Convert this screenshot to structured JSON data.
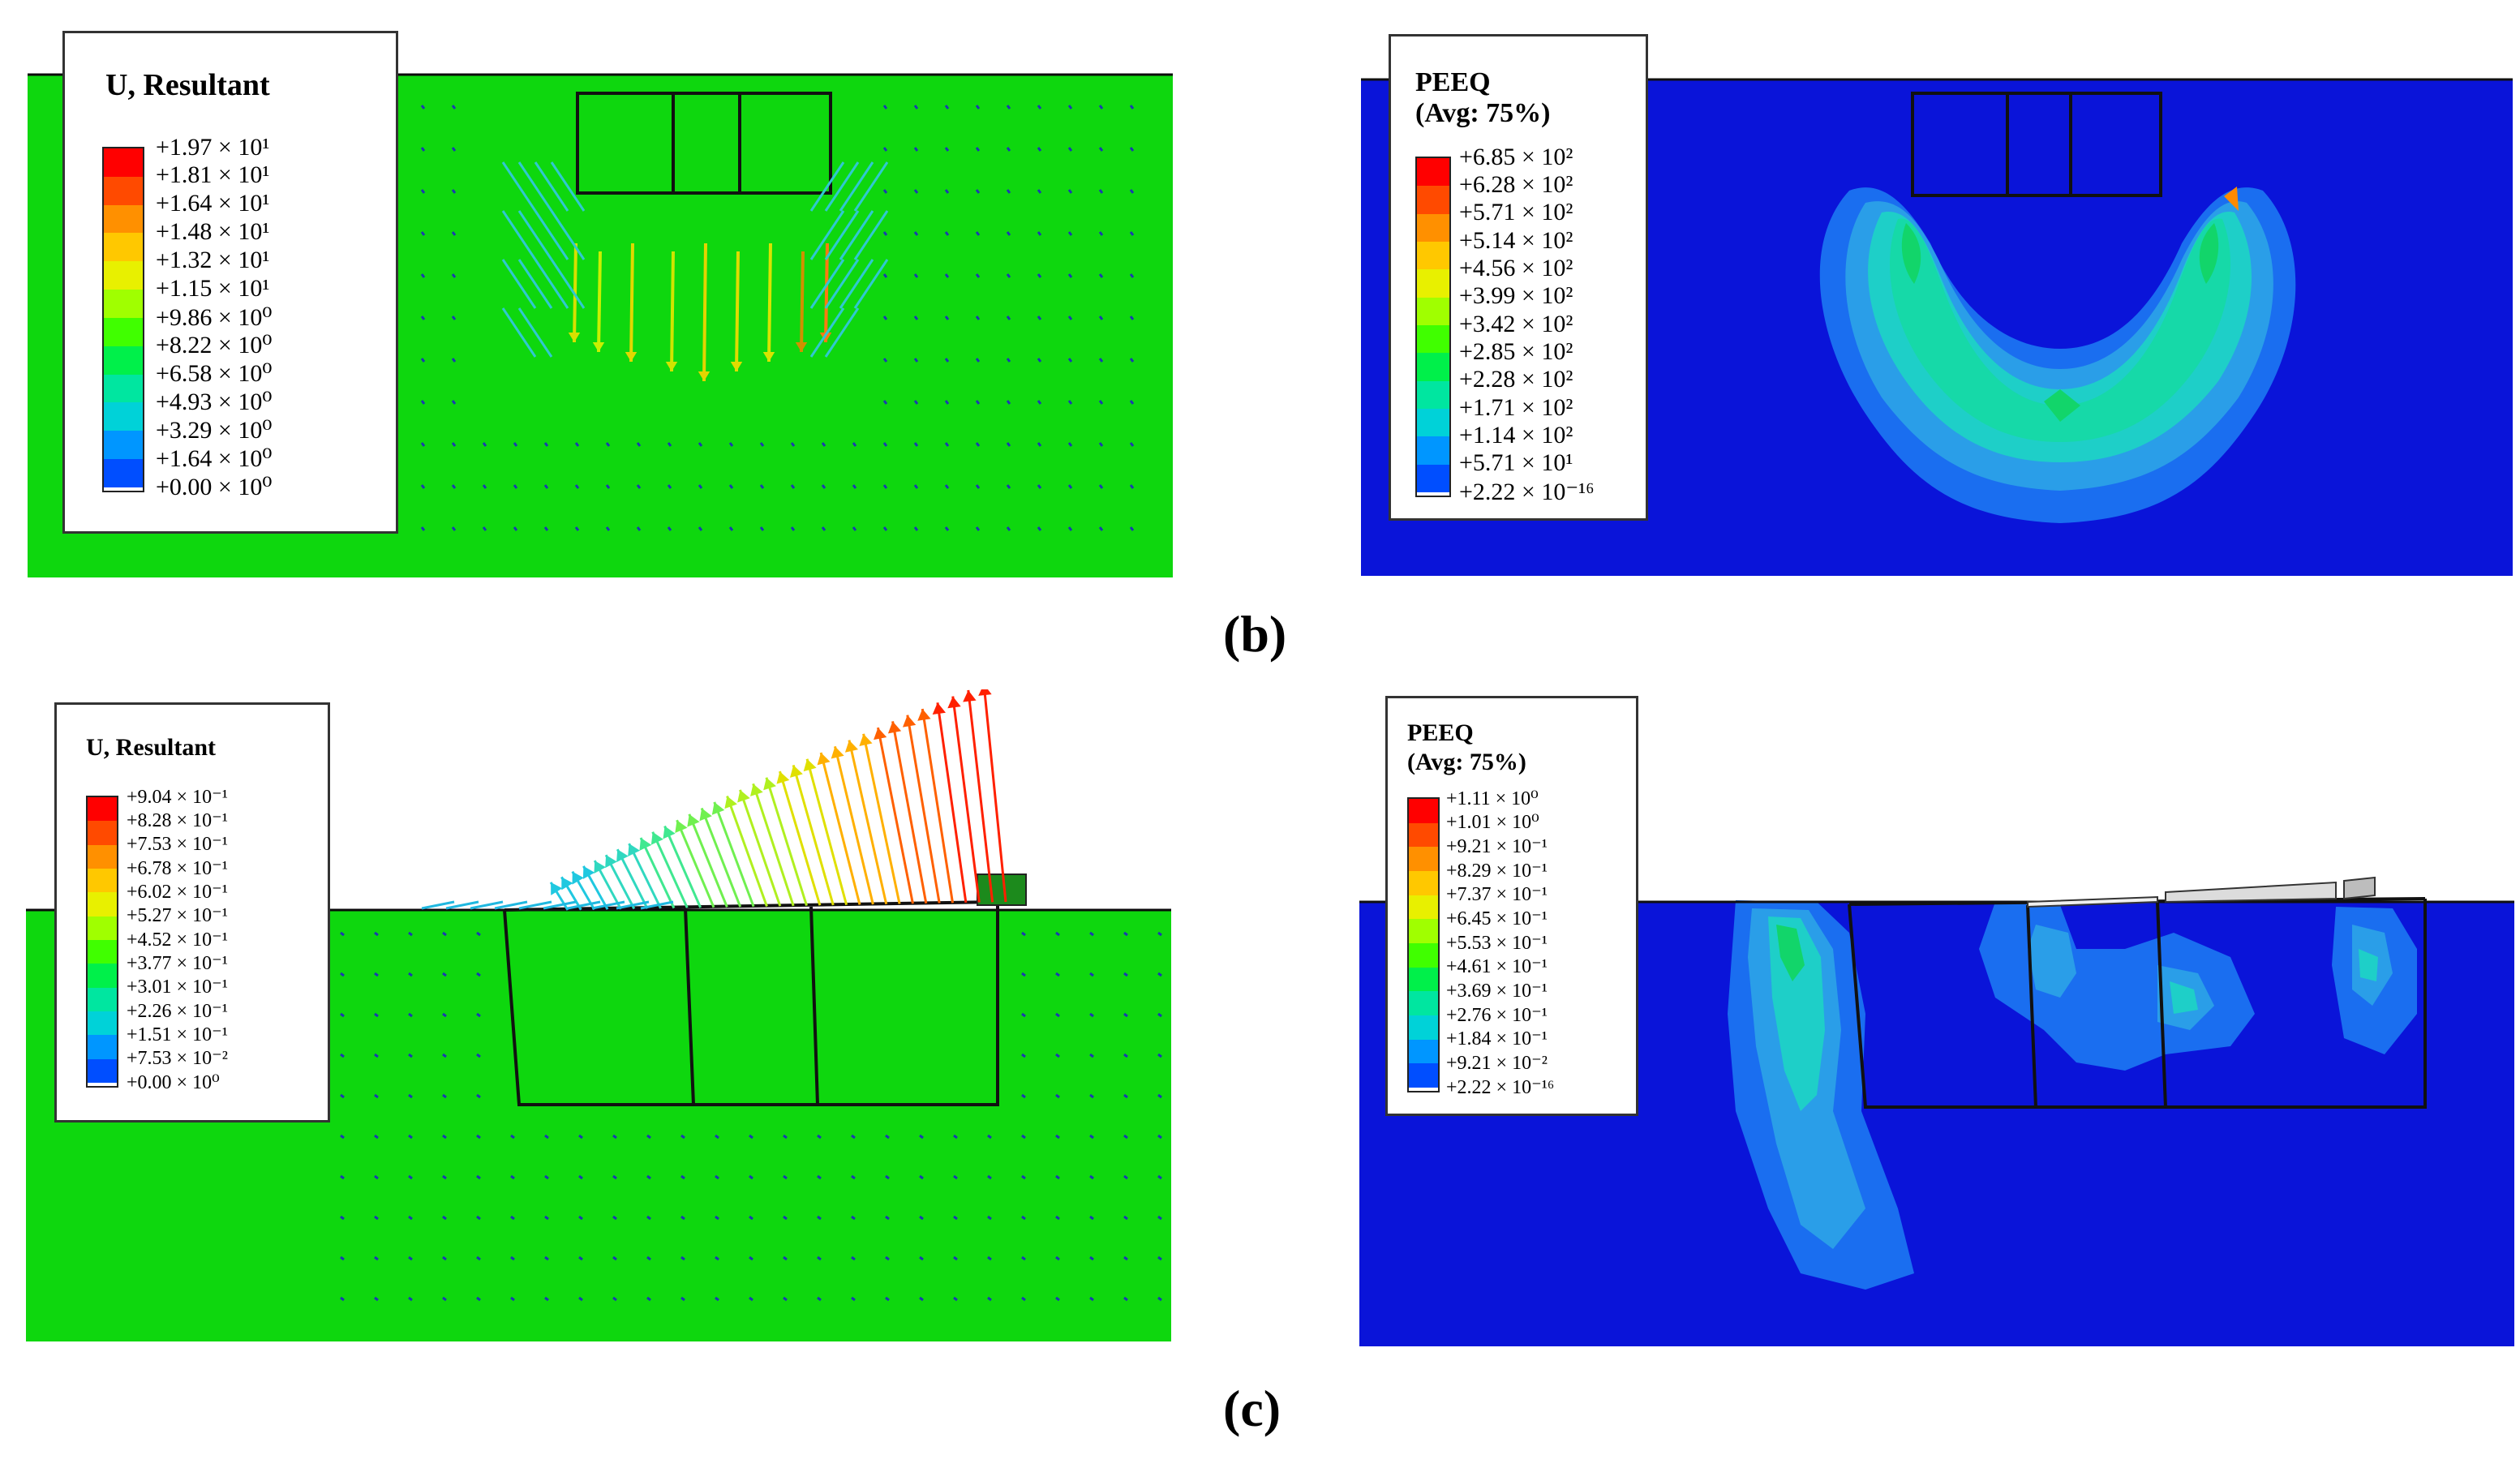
{
  "panels": [
    {
      "id": "b-left",
      "legend": {
        "title": "U, Resultant",
        "subtitle": "",
        "values": [
          "+1.97 × 10¹",
          "+1.81 × 10¹",
          "+1.64 × 10¹",
          "+1.48 × 10¹",
          "+1.32 × 10¹",
          "+1.15 × 10¹",
          "+9.86 × 10⁰",
          "+8.22 × 10⁰",
          "+6.58 × 10⁰",
          "+4.93 × 10⁰",
          "+3.29 × 10⁰",
          "+1.64 × 10⁰",
          "+0.00 × 10⁰"
        ]
      }
    },
    {
      "id": "b-right",
      "legend": {
        "title": "PEEQ",
        "subtitle": "(Avg: 75%)",
        "values": [
          "+6.85 × 10²",
          "+6.28 × 10²",
          "+5.71 × 10²",
          "+5.14 × 10²",
          "+4.56 × 10²",
          "+3.99 × 10²",
          "+3.42 × 10²",
          "+2.85 × 10²",
          "+2.28 × 10²",
          "+1.71 × 10²",
          "+1.14 × 10²",
          "+5.71 × 10¹",
          "+2.22 × 10⁻¹⁶"
        ]
      }
    },
    {
      "id": "c-left",
      "legend": {
        "title": "U, Resultant",
        "subtitle": "",
        "values": [
          "+9.04 × 10⁻¹",
          "+8.28 × 10⁻¹",
          "+7.53 × 10⁻¹",
          "+6.78 × 10⁻¹",
          "+6.02 × 10⁻¹",
          "+5.27 × 10⁻¹",
          "+4.52 × 10⁻¹",
          "+3.77 × 10⁻¹",
          "+3.01 × 10⁻¹",
          "+2.26 × 10⁻¹",
          "+1.51 × 10⁻¹",
          "+7.53 × 10⁻²",
          "+0.00 × 10⁰"
        ]
      }
    },
    {
      "id": "c-right",
      "legend": {
        "title": "PEEQ",
        "subtitle": "(Avg: 75%)",
        "values": [
          "+1.11 × 10⁰",
          "+1.01 × 10⁰",
          "+9.21 × 10⁻¹",
          "+8.29 × 10⁻¹",
          "+7.37 × 10⁻¹",
          "+6.45 × 10⁻¹",
          "+5.53 × 10⁻¹",
          "+4.61 × 10⁻¹",
          "+3.69 × 10⁻¹",
          "+2.76 × 10⁻¹",
          "+1.84 × 10⁻¹",
          "+9.21 × 10⁻²",
          "+2.22 × 10⁻¹⁶"
        ]
      }
    }
  ],
  "colormap": [
    "#ff0000",
    "#ff4a00",
    "#ff9000",
    "#ffc800",
    "#e8f000",
    "#a0ff00",
    "#40ff00",
    "#00f04a",
    "#00e6a0",
    "#00d2d8",
    "#0096ff",
    "#004eff",
    "#0000ff"
  ],
  "captions": {
    "b": "(b)",
    "c": "(c)"
  }
}
